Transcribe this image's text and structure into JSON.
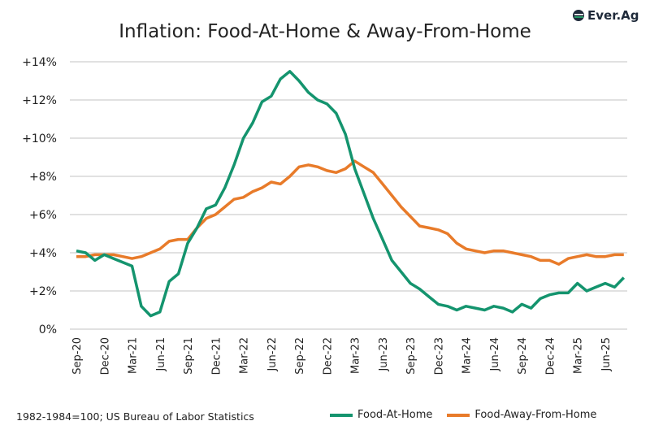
{
  "logo_text": "Ever.Ag",
  "chart_data": {
    "type": "line",
    "title": "Inflation: Food-At-Home & Away-From-Home",
    "xlabel": "",
    "ylabel": "",
    "ylim": [
      0,
      14
    ],
    "yticks": [
      0,
      2,
      4,
      6,
      8,
      10,
      12,
      14
    ],
    "ytick_labels": [
      "0%",
      "+2%",
      "+4%",
      "+6%",
      "+8%",
      "+10%",
      "+12%",
      "+14%"
    ],
    "x": [
      "Sep-20",
      "Oct-20",
      "Nov-20",
      "Dec-20",
      "Jan-21",
      "Feb-21",
      "Mar-21",
      "Apr-21",
      "May-21",
      "Jun-21",
      "Jul-21",
      "Aug-21",
      "Sep-21",
      "Oct-21",
      "Nov-21",
      "Dec-21",
      "Jan-22",
      "Feb-22",
      "Mar-22",
      "Apr-22",
      "May-22",
      "Jun-22",
      "Jul-22",
      "Aug-22",
      "Sep-22",
      "Oct-22",
      "Nov-22",
      "Dec-22",
      "Jan-23",
      "Feb-23",
      "Mar-23",
      "Apr-23",
      "May-23",
      "Jun-23",
      "Jul-23",
      "Aug-23",
      "Sep-23",
      "Oct-23",
      "Nov-23",
      "Dec-23",
      "Jan-24",
      "Feb-24",
      "Mar-24",
      "Apr-24",
      "May-24",
      "Jun-24",
      "Jul-24",
      "Aug-24",
      "Sep-24",
      "Oct-24",
      "Nov-24",
      "Dec-24",
      "Jan-25",
      "Feb-25",
      "Mar-25",
      "Apr-25",
      "May-25",
      "Jun-25",
      "Jul-25",
      "Aug-25"
    ],
    "xtick_labels": [
      "Sep-20",
      "Dec-20",
      "Mar-21",
      "Jun-21",
      "Sep-21",
      "Dec-21",
      "Mar-22",
      "Jun-22",
      "Sep-22",
      "Dec-22",
      "Mar-23",
      "Jun-23",
      "Sep-23",
      "Dec-23",
      "Mar-24",
      "Jun-24",
      "Sep-24",
      "Dec-24",
      "Mar-25",
      "Jun-25"
    ],
    "grid": true,
    "legend": "bottom-right",
    "series": [
      {
        "name": "Food-At-Home",
        "color": "#14946e",
        "values": [
          4.1,
          4.0,
          3.6,
          3.9,
          3.7,
          3.5,
          3.3,
          1.2,
          0.7,
          0.9,
          2.5,
          2.9,
          4.5,
          5.3,
          6.3,
          6.5,
          7.4,
          8.6,
          10.0,
          10.8,
          11.9,
          12.2,
          13.1,
          13.5,
          13.0,
          12.4,
          12.0,
          11.8,
          11.3,
          10.2,
          8.4,
          7.1,
          5.8,
          4.7,
          3.6,
          3.0,
          2.4,
          2.1,
          1.7,
          1.3,
          1.2,
          1.0,
          1.2,
          1.1,
          1.0,
          1.2,
          1.1,
          0.9,
          1.3,
          1.1,
          1.6,
          1.8,
          1.9,
          1.9,
          2.4,
          2.0,
          2.2,
          2.4,
          2.2,
          2.7
        ]
      },
      {
        "name": "Food-Away-From-Home",
        "color": "#e87b2a",
        "values": [
          3.8,
          3.8,
          3.9,
          3.9,
          3.9,
          3.8,
          3.7,
          3.8,
          4.0,
          4.2,
          4.6,
          4.7,
          4.7,
          5.3,
          5.8,
          6.0,
          6.4,
          6.8,
          6.9,
          7.2,
          7.4,
          7.7,
          7.6,
          8.0,
          8.5,
          8.6,
          8.5,
          8.3,
          8.2,
          8.4,
          8.8,
          8.5,
          8.2,
          7.6,
          7.0,
          6.4,
          5.9,
          5.4,
          5.3,
          5.2,
          5.0,
          4.5,
          4.2,
          4.1,
          4.0,
          4.1,
          4.1,
          4.0,
          3.9,
          3.8,
          3.6,
          3.6,
          3.4,
          3.7,
          3.8,
          3.9,
          3.8,
          3.8,
          3.9,
          3.9
        ]
      }
    ],
    "note": "1982-1984=100; US Bureau of Labor Statistics"
  }
}
